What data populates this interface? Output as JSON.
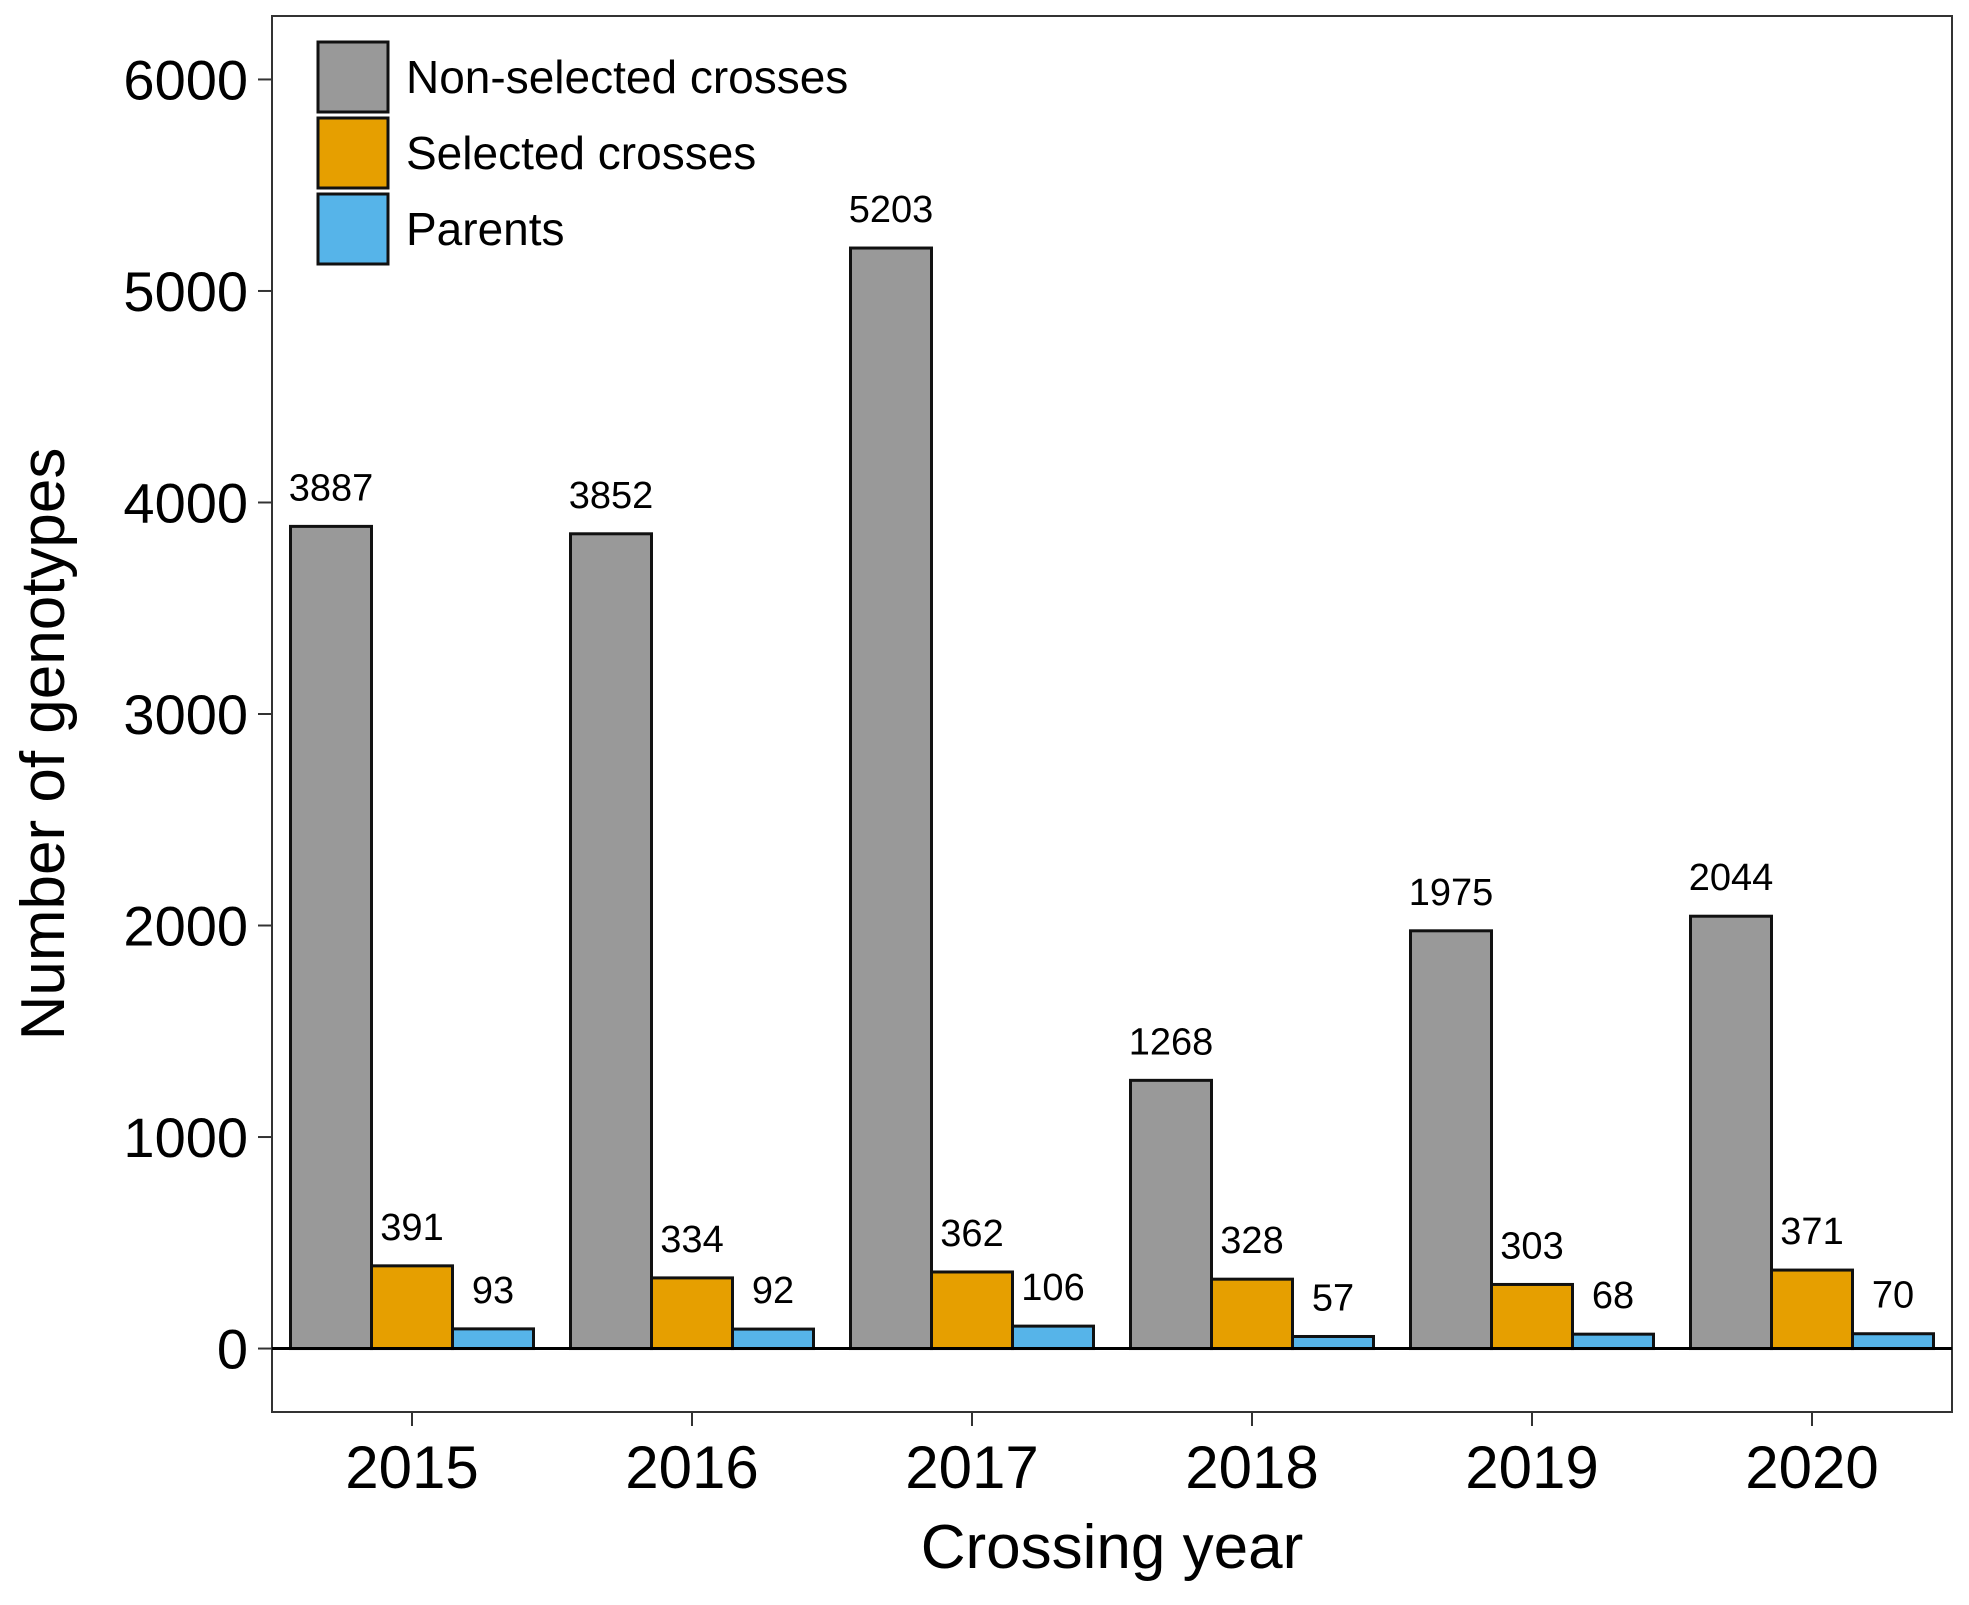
{
  "chart_data": {
    "type": "bar",
    "xlabel": "Crossing year",
    "ylabel": "Number of genotypes",
    "ylim": [
      -300,
      6300
    ],
    "yticks": [
      0,
      1000,
      2000,
      3000,
      4000,
      5000,
      6000
    ],
    "categories": [
      "2015",
      "2016",
      "2017",
      "2018",
      "2019",
      "2020"
    ],
    "legend_position": "top-left",
    "grid": false,
    "series": [
      {
        "name": "Non-selected crosses",
        "color": "#999999",
        "values": [
          3887,
          3852,
          5203,
          1268,
          1975,
          2044
        ]
      },
      {
        "name": "Selected crosses",
        "color": "#E69F00",
        "values": [
          391,
          334,
          362,
          328,
          303,
          371
        ]
      },
      {
        "name": "Parents",
        "color": "#56B4E9",
        "values": [
          93,
          92,
          106,
          57,
          68,
          70
        ]
      }
    ]
  }
}
